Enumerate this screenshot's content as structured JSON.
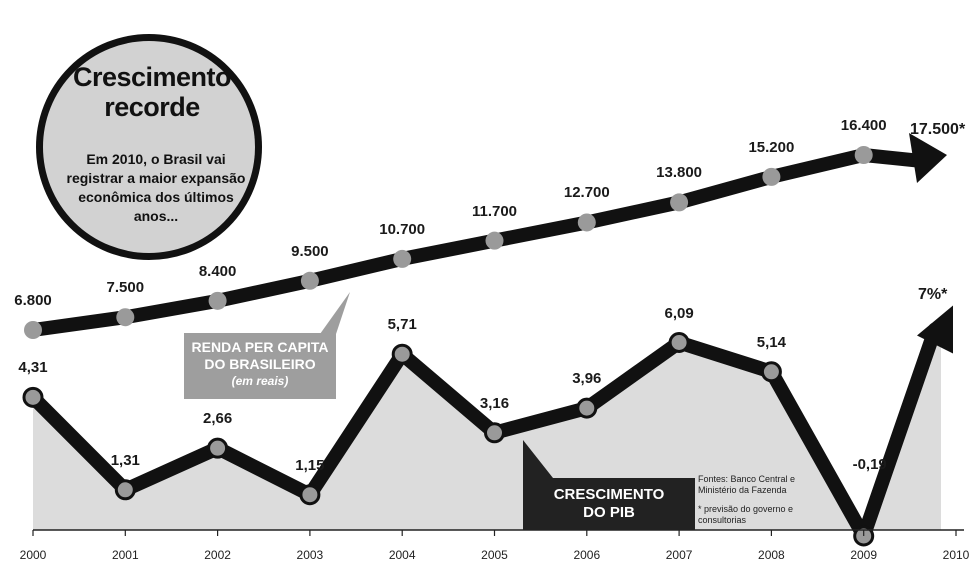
{
  "headline": {
    "title_line1": "Crescimento",
    "title_line2": "recorde",
    "subtitle": "Em 2010, o Brasil vai registrar a maior expansão econômica dos últimos anos..."
  },
  "labels": {
    "renda_line1": "RENDA PER CAPITA",
    "renda_line2": "DO BRASILEIRO",
    "renda_unit": "(em reais)",
    "pib_line1": "CRESCIMENTO",
    "pib_line2": "DO PIB",
    "fontes": "Fontes: Banco Central e Ministério da Fazenda",
    "nota": "* previsão do governo e consultorias"
  },
  "colors": {
    "line": "#111111",
    "marker": "#9a9a9a",
    "area_fill": "#dcdcdc",
    "circle_fill": "#d2d2d2",
    "renda_box": "#9e9e9e",
    "pib_box": "#222222"
  },
  "chart_data": [
    {
      "type": "line",
      "series": [
        {
          "name": "RENDA PER CAPITA DO BRASILEIRO (em reais)",
          "x": [
            "2000",
            "2001",
            "2002",
            "2003",
            "2004",
            "2005",
            "2006",
            "2007",
            "2008",
            "2009",
            "2010"
          ],
          "values": [
            6800,
            7500,
            8400,
            9500,
            10700,
            11700,
            12700,
            13800,
            15200,
            16400,
            17500
          ],
          "value_labels": [
            "6.800",
            "7.500",
            "8.400",
            "9.500",
            "10.700",
            "11.700",
            "12.700",
            "13.800",
            "15.200",
            "16.400",
            "17.500*"
          ]
        }
      ]
    },
    {
      "type": "area",
      "series": [
        {
          "name": "CRESCIMENTO DO PIB",
          "x": [
            "2000",
            "2001",
            "2002",
            "2003",
            "2004",
            "2005",
            "2006",
            "2007",
            "2008",
            "2009",
            "2010"
          ],
          "values": [
            4.31,
            1.31,
            2.66,
            1.15,
            5.71,
            3.16,
            3.96,
            6.09,
            5.14,
            -0.19,
            7
          ],
          "value_labels": [
            "4,31",
            "1,31",
            "2,66",
            "1,15",
            "5,71",
            "3,16",
            "3,96",
            "6,09",
            "5,14",
            "-0,19",
            "7%*"
          ]
        }
      ],
      "categories": [
        "2000",
        "2001",
        "2002",
        "2003",
        "2004",
        "2005",
        "2006",
        "2007",
        "2008",
        "2009",
        "2010"
      ]
    }
  ]
}
